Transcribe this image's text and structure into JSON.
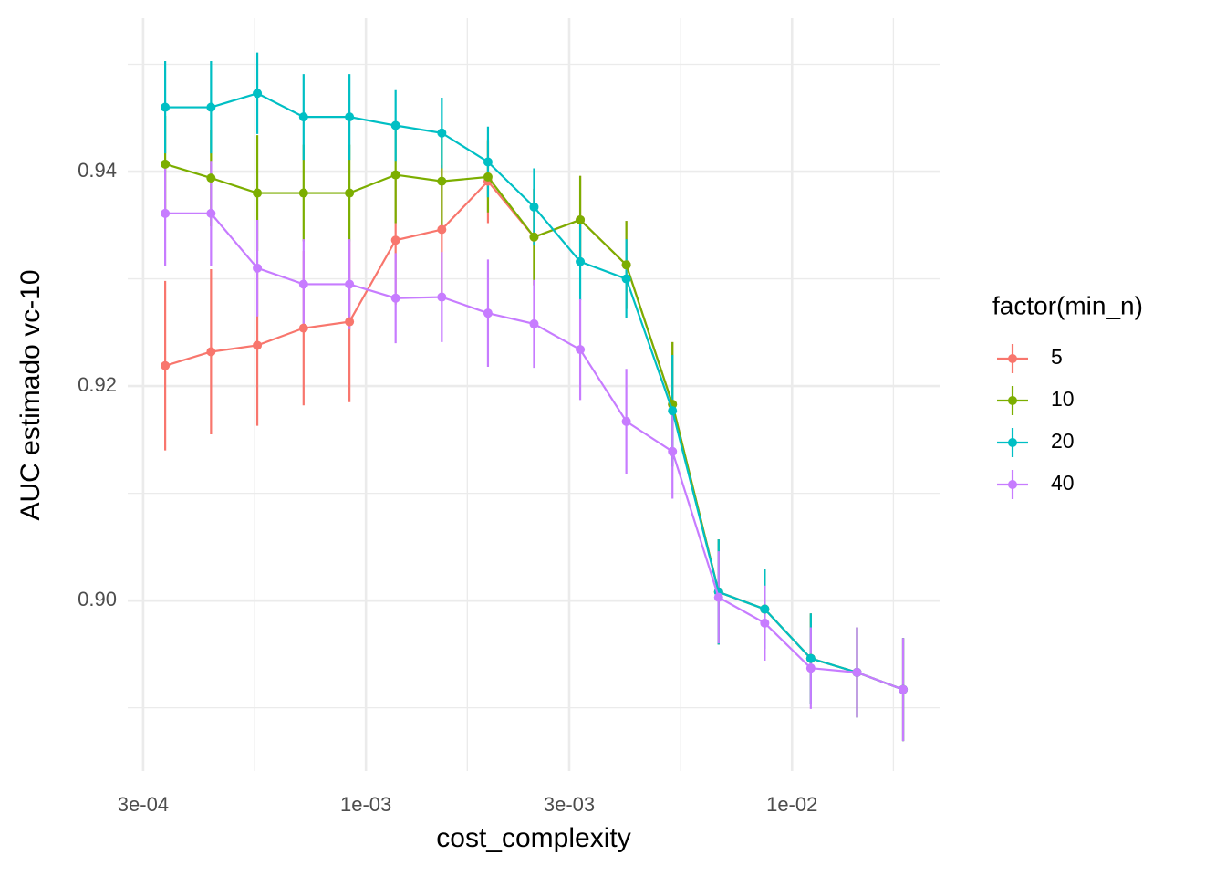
{
  "chart_data": {
    "type": "line",
    "x_label": "cost_complexity",
    "y_label": "AUC estimado vc-10",
    "legend_title": "factor(min_n)",
    "legend_position": "right",
    "xscale": "log",
    "grid": true,
    "x": [
      0.000338,
      0.000433,
      0.000556,
      0.000714,
      0.000915,
      0.001174,
      0.001507,
      0.001934,
      0.002481,
      0.003184,
      0.004085,
      0.005242,
      0.006726,
      0.00863,
      0.01107,
      0.01421,
      0.01823
    ],
    "xlim": [
      0.000276,
      0.0222
    ],
    "xticks": [
      {
        "value": 0.0003,
        "label": "3e-04"
      },
      {
        "value": 0.001,
        "label": "1e-03"
      },
      {
        "value": 0.003,
        "label": "3e-03"
      },
      {
        "value": 0.01,
        "label": "1e-02"
      }
    ],
    "xminor": [
      0.000548,
      0.00173,
      0.00548,
      0.0173
    ],
    "ylim": [
      0.8841,
      0.9543
    ],
    "yticks": [
      {
        "value": 0.9,
        "label": "0.90"
      },
      0.92,
      0.94
    ],
    "yminor": [
      0.89,
      0.91,
      0.93,
      0.95
    ],
    "series": [
      {
        "name": "5",
        "color": "#F8766D",
        "values": [
          0.9219,
          0.9232,
          0.9238,
          0.9254,
          0.926,
          0.9336,
          0.9346,
          0.9391,
          0.9339,
          0.9355,
          0.9313,
          0.9183,
          0.9008,
          0.8992,
          0.8946,
          0.8933,
          0.8917
        ],
        "errors": [
          0.0079,
          0.0077,
          0.0075,
          0.0072,
          0.0075,
          0.006,
          0.006,
          0.0039,
          0.0045,
          0.0041,
          0.0041,
          0.0058,
          0.0049,
          0.0037,
          0.0042,
          0.0042,
          0.0048
        ]
      },
      {
        "name": "10",
        "color": "#7CAE00",
        "values": [
          0.9407,
          0.9394,
          0.938,
          0.938,
          0.938,
          0.9397,
          0.9391,
          0.9395,
          0.9339,
          0.9355,
          0.9313,
          0.9183,
          0.9008,
          0.8992,
          0.8946,
          0.8933,
          0.8917
        ],
        "errors": [
          0.0045,
          0.0045,
          0.0054,
          0.0045,
          0.0045,
          0.0045,
          0.0045,
          0.0033,
          0.0045,
          0.0041,
          0.0041,
          0.0058,
          0.0049,
          0.0037,
          0.0042,
          0.0042,
          0.0048
        ]
      },
      {
        "name": "20",
        "color": "#00BFC4",
        "values": [
          0.946,
          0.946,
          0.9473,
          0.9451,
          0.9451,
          0.9443,
          0.9436,
          0.9409,
          0.9367,
          0.9316,
          0.93,
          0.9177,
          0.9008,
          0.8992,
          0.8946,
          0.8933,
          0.8917
        ],
        "errors": [
          0.0043,
          0.0043,
          0.0038,
          0.004,
          0.004,
          0.0033,
          0.0033,
          0.0033,
          0.0036,
          0.0036,
          0.0037,
          0.0052,
          0.0049,
          0.0037,
          0.0042,
          0.0042,
          0.0048
        ]
      },
      {
        "name": "40",
        "color": "#C77CFF",
        "values": [
          0.9361,
          0.9361,
          0.931,
          0.9295,
          0.9295,
          0.9282,
          0.9283,
          0.9268,
          0.9258,
          0.9234,
          0.9167,
          0.9139,
          0.9003,
          0.8979,
          0.8937,
          0.8933,
          0.8917
        ],
        "errors": [
          0.0049,
          0.0049,
          0.0045,
          0.0042,
          0.0042,
          0.0042,
          0.0042,
          0.005,
          0.0041,
          0.0047,
          0.0049,
          0.0044,
          0.0043,
          0.0035,
          0.0038,
          0.0042,
          0.0048
        ]
      }
    ]
  }
}
